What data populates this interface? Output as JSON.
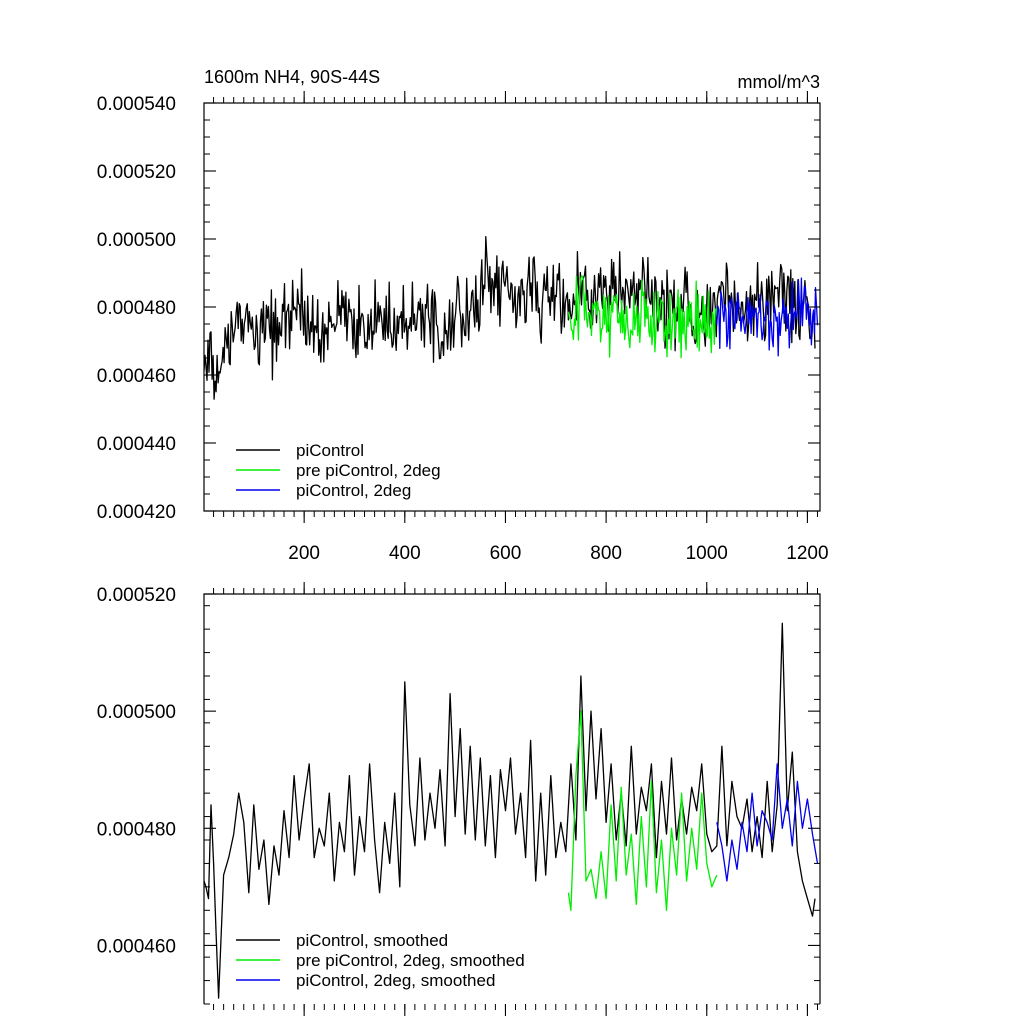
{
  "chart_data": [
    {
      "type": "line",
      "title_left": "1600m NH4, 90S-44S",
      "title_right": "mmol/m^3",
      "xlim": [
        1,
        1225
      ],
      "ylim": [
        0.00042,
        0.00054
      ],
      "x_ticks": [
        200,
        400,
        600,
        800,
        1000,
        1200
      ],
      "x_tick_labels": [
        "200",
        "400",
        "600",
        "800",
        "1000",
        "1200"
      ],
      "y_ticks": [
        0.00042,
        0.00044,
        0.00046,
        0.00048,
        0.0005,
        0.00052,
        0.00054
      ],
      "y_tick_labels": [
        "0.000420",
        "0.000440",
        "0.000460",
        "0.000480",
        "0.000500",
        "0.000520",
        "0.000540"
      ],
      "grid": false,
      "legend_position": "bottom-left",
      "series": [
        {
          "name": "piControl",
          "color": "#000000",
          "x": [
            1,
            25,
            50,
            75,
            100,
            125,
            150,
            175,
            200,
            225,
            250,
            275,
            300,
            325,
            350,
            375,
            400,
            425,
            450,
            475,
            500,
            525,
            550,
            575,
            600,
            625,
            650,
            675,
            700,
            725,
            750,
            775,
            800,
            825,
            850,
            875,
            900,
            925,
            950,
            975,
            1000,
            1025,
            1050,
            1075,
            1100,
            1125,
            1150,
            1175,
            1200,
            1215
          ],
          "y": [
            0.000465,
            0.000458,
            0.000468,
            0.000478,
            0.000472,
            0.000476,
            0.000471,
            0.000479,
            0.000476,
            0.000472,
            0.000474,
            0.000479,
            0.000476,
            0.000473,
            0.000475,
            0.000478,
            0.000476,
            0.000481,
            0.000477,
            0.000474,
            0.000479,
            0.000476,
            0.000482,
            0.000488,
            0.000484,
            0.00048,
            0.000486,
            0.000482,
            0.000484,
            0.000481,
            0.000486,
            0.000484,
            0.000482,
            0.000487,
            0.00048,
            0.000484,
            0.000483,
            0.00048,
            0.000482,
            0.000478,
            0.000477,
            0.000481,
            0.00048,
            0.000478,
            0.000483,
            0.00048,
            0.000486,
            0.00048,
            0.000477,
            0.000472
          ],
          "amplitude": 1.3e-05
        },
        {
          "name": "pre piControl, 2deg",
          "color": "#00ee00",
          "x": [
            725,
            750,
            775,
            800,
            825,
            850,
            875,
            900,
            925,
            950,
            975,
            1000,
            1022
          ],
          "y": [
            0.000474,
            0.000479,
            0.000477,
            0.000474,
            0.000478,
            0.000475,
            0.000477,
            0.000474,
            0.000478,
            0.000475,
            0.000476,
            0.000474,
            0.000475
          ],
          "amplitude": 1.3e-05
        },
        {
          "name": "piControl, 2deg",
          "color": "#0000ee",
          "x": [
            1020,
            1045,
            1070,
            1095,
            1120,
            1145,
            1170,
            1195,
            1220
          ],
          "y": [
            0.000477,
            0.000476,
            0.000478,
            0.000479,
            0.000478,
            0.000476,
            0.000479,
            0.000481,
            0.000476
          ],
          "amplitude": 1.1e-05
        }
      ]
    },
    {
      "type": "line",
      "xlim": [
        1,
        1225
      ],
      "ylim": [
        0.00045,
        0.00052
      ],
      "x_ticks": [
        200,
        400,
        600,
        800,
        1000,
        1200
      ],
      "y_ticks": [
        0.00046,
        0.00048,
        0.0005,
        0.00052
      ],
      "y_tick_labels": [
        "0.000460",
        "0.000480",
        "0.000500",
        "0.000520"
      ],
      "grid": false,
      "legend_position": "bottom-left",
      "series": [
        {
          "name": "piControl, smoothed",
          "color": "#000000",
          "x": [
            1,
            5,
            10,
            15,
            20,
            25,
            30,
            40,
            50,
            60,
            70,
            80,
            90,
            100,
            110,
            120,
            130,
            140,
            150,
            160,
            170,
            180,
            190,
            200,
            210,
            220,
            230,
            240,
            250,
            260,
            270,
            280,
            290,
            300,
            310,
            320,
            330,
            340,
            350,
            360,
            370,
            380,
            390,
            400,
            410,
            420,
            430,
            440,
            450,
            460,
            470,
            480,
            490,
            500,
            510,
            520,
            530,
            540,
            550,
            560,
            570,
            580,
            590,
            600,
            610,
            620,
            630,
            640,
            650,
            660,
            670,
            680,
            690,
            700,
            710,
            720,
            730,
            740,
            750,
            760,
            770,
            780,
            790,
            800,
            810,
            820,
            830,
            840,
            850,
            860,
            870,
            880,
            890,
            900,
            910,
            920,
            930,
            940,
            950,
            960,
            970,
            980,
            990,
            1000,
            1010,
            1020,
            1030,
            1040,
            1050,
            1060,
            1070,
            1080,
            1090,
            1100,
            1110,
            1120,
            1130,
            1140,
            1150,
            1160,
            1170,
            1180,
            1190,
            1200,
            1210,
            1215
          ],
          "y": [
            0.000471,
            0.00047,
            0.000468,
            0.000484,
            0.000474,
            0.000462,
            0.000451,
            0.000472,
            0.000475,
            0.000479,
            0.000486,
            0.000481,
            0.000469,
            0.000484,
            0.000473,
            0.000478,
            0.000467,
            0.000477,
            0.000472,
            0.000483,
            0.000475,
            0.000489,
            0.000478,
            0.000485,
            0.000491,
            0.000475,
            0.00048,
            0.000477,
            0.000486,
            0.000471,
            0.000481,
            0.000476,
            0.000489,
            0.000472,
            0.000482,
            0.000476,
            0.000491,
            0.000478,
            0.000469,
            0.000481,
            0.000474,
            0.000486,
            0.00047,
            0.000505,
            0.000484,
            0.000477,
            0.000492,
            0.000478,
            0.000486,
            0.00048,
            0.00049,
            0.000477,
            0.000503,
            0.000482,
            0.000497,
            0.000479,
            0.000494,
            0.000478,
            0.000492,
            0.000477,
            0.000489,
            0.000475,
            0.00049,
            0.000483,
            0.000492,
            0.000479,
            0.000486,
            0.000475,
            0.000495,
            0.000471,
            0.000486,
            0.000472,
            0.000489,
            0.000475,
            0.000481,
            0.000476,
            0.000491,
            0.000478,
            0.000506,
            0.000483,
            0.0005,
            0.000485,
            0.000497,
            0.000481,
            0.000491,
            0.000478,
            0.000486,
            0.000477,
            0.000494,
            0.000479,
            0.000487,
            0.000483,
            0.000491,
            0.000475,
            0.000488,
            0.000479,
            0.000492,
            0.000478,
            0.000485,
            0.000479,
            0.000487,
            0.000483,
            0.000491,
            0.000479,
            0.000476,
            0.000477,
            0.000494,
            0.000477,
            0.000488,
            0.000482,
            0.00048,
            0.000485,
            0.000476,
            0.000482,
            0.000475,
            0.000488,
            0.000476,
            0.000484,
            0.000515,
            0.000483,
            0.000493,
            0.000476,
            0.000471,
            0.000468,
            0.000465,
            0.000468
          ]
        },
        {
          "name": "pre piControl, 2deg, smoothed",
          "color": "#00ee00",
          "x": [
            725,
            730,
            740,
            750,
            760,
            770,
            780,
            790,
            800,
            810,
            820,
            830,
            840,
            850,
            860,
            870,
            880,
            890,
            900,
            910,
            920,
            930,
            940,
            950,
            960,
            970,
            980,
            990,
            1000,
            1010,
            1020
          ],
          "y": [
            0.000469,
            0.000466,
            0.000489,
            0.0005,
            0.000471,
            0.000473,
            0.000468,
            0.000476,
            0.000468,
            0.000484,
            0.000471,
            0.000487,
            0.000472,
            0.000479,
            0.000467,
            0.000482,
            0.00047,
            0.000488,
            0.000469,
            0.000478,
            0.000466,
            0.00048,
            0.000472,
            0.000486,
            0.000471,
            0.00048,
            0.000473,
            0.000486,
            0.000474,
            0.00047,
            0.000472
          ]
        },
        {
          "name": "piControl, 2deg, smoothed",
          "color": "#0000ee",
          "x": [
            1020,
            1030,
            1040,
            1050,
            1060,
            1070,
            1080,
            1090,
            1100,
            1110,
            1120,
            1130,
            1140,
            1150,
            1160,
            1170,
            1180,
            1190,
            1200,
            1210,
            1220
          ],
          "y": [
            0.000481,
            0.000477,
            0.000471,
            0.000478,
            0.000473,
            0.000481,
            0.000476,
            0.000486,
            0.000477,
            0.000483,
            0.000481,
            0.000478,
            0.000491,
            0.00048,
            0.000485,
            0.000477,
            0.000488,
            0.00048,
            0.000485,
            0.000479,
            0.000474
          ]
        }
      ]
    }
  ]
}
